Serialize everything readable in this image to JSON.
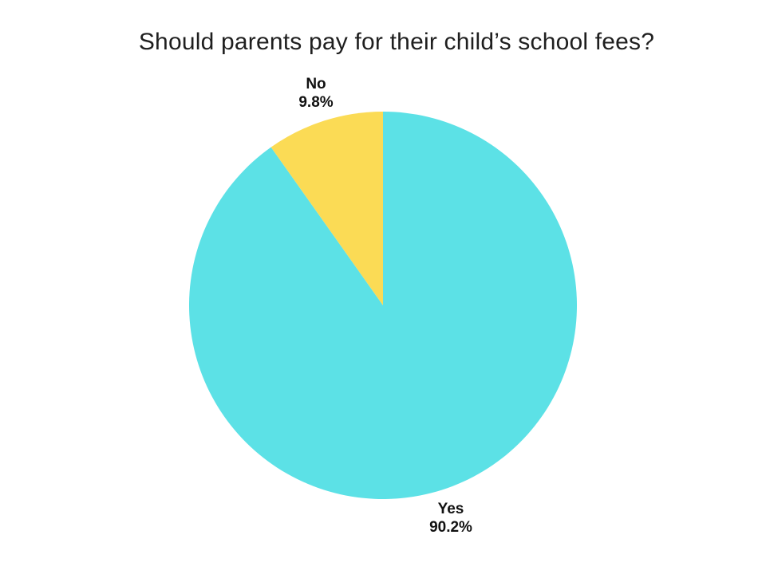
{
  "page": {
    "background_color": "#ffffff",
    "text_color": "#1f1f1f"
  },
  "chart_data": {
    "type": "pie",
    "title": "Should parents pay for their child’s school fees?",
    "legend": "none",
    "label_position": "outside",
    "start_angle_deg": -90,
    "direction": "clockwise",
    "slices": [
      {
        "label": "Yes",
        "value": 90.2,
        "pct_label": "90.2%",
        "color": "#5CE1E6"
      },
      {
        "label": "No",
        "value": 9.8,
        "pct_label": "9.8%",
        "color": "#FBDB55"
      }
    ]
  }
}
